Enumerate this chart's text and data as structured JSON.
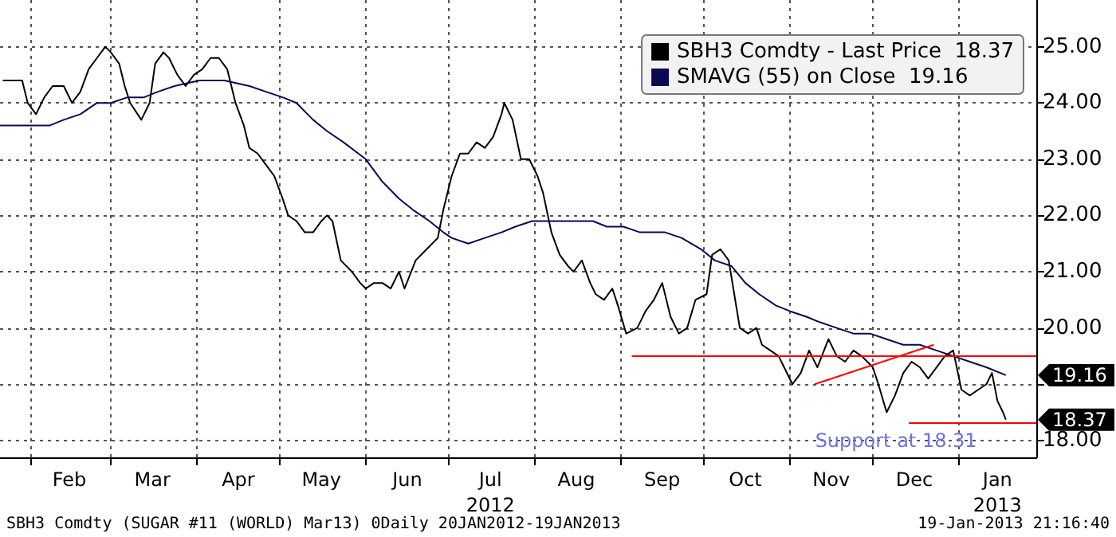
{
  "chart_data": {
    "type": "line",
    "xlim": [
      "2012-01-21",
      "2013-01-29"
    ],
    "xticks": [
      {
        "value": "2012-02-01",
        "label": null
      },
      {
        "value": "2012-03-01",
        "label": null
      },
      {
        "value": "2012-04-01",
        "label": null
      },
      {
        "value": "2012-05-01",
        "label": null
      },
      {
        "value": "2012-06-01",
        "label": null
      },
      {
        "value": "2012-07-01",
        "label": null
      },
      {
        "value": "2012-08-01",
        "label": null
      },
      {
        "value": "2012-09-01",
        "label": null
      },
      {
        "value": "2012-10-01",
        "label": null
      },
      {
        "value": "2012-11-01",
        "label": null
      },
      {
        "value": "2012-12-01",
        "label": null
      },
      {
        "value": "2013-01-01",
        "label": null
      },
      {
        "value": "2012-02-15",
        "label": "Feb"
      },
      {
        "value": "2012-03-16",
        "label": "Mar"
      },
      {
        "value": "2012-04-16",
        "label": "Apr"
      },
      {
        "value": "2012-05-16",
        "label": "May"
      },
      {
        "value": "2012-06-16",
        "label": "Jun"
      },
      {
        "value": "2012-07-16",
        "label": "Jul\n2012"
      },
      {
        "value": "2012-08-16",
        "label": "Aug"
      },
      {
        "value": "2012-09-16",
        "label": "Sep"
      },
      {
        "value": "2012-10-16",
        "label": "Oct"
      },
      {
        "value": "2012-11-16",
        "label": "Nov"
      },
      {
        "value": "2012-12-16",
        "label": "Dec"
      },
      {
        "value": "2013-01-15",
        "label": "Jan\n2013"
      }
    ],
    "ylim": [
      17.7,
      25.83
    ],
    "yticks": [
      {
        "value": 18,
        "label": "18.00"
      },
      {
        "value": 19,
        "label": null
      },
      {
        "value": 20,
        "label": "20.00"
      },
      {
        "value": 21,
        "label": "21.00"
      },
      {
        "value": 22,
        "label": "22.00"
      },
      {
        "value": 23,
        "label": "23.00"
      },
      {
        "value": 24,
        "label": "24.00"
      },
      {
        "value": 25,
        "label": "25.00"
      }
    ],
    "grid": true,
    "legend": "top right",
    "series": [
      {
        "name": "SBH3 Comdty - Last Price  18.37",
        "color": "#000000",
        "x": [
          "2012-01-22",
          "2012-01-26",
          "2012-01-29",
          "2012-01-31",
          "2012-02-03",
          "2012-02-06",
          "2012-02-09",
          "2012-02-13",
          "2012-02-16",
          "2012-02-19",
          "2012-02-22",
          "2012-02-25",
          "2012-02-28",
          "2012-03-01",
          "2012-03-04",
          "2012-03-06",
          "2012-03-08",
          "2012-03-12",
          "2012-03-15",
          "2012-03-17",
          "2012-03-20",
          "2012-03-22",
          "2012-03-25",
          "2012-03-28",
          "2012-03-31",
          "2012-04-03",
          "2012-04-06",
          "2012-04-09",
          "2012-04-12",
          "2012-04-15",
          "2012-04-18",
          "2012-04-20",
          "2012-04-23",
          "2012-04-26",
          "2012-04-29",
          "2012-05-02",
          "2012-05-04",
          "2012-05-07",
          "2012-05-10",
          "2012-05-13",
          "2012-05-16",
          "2012-05-18",
          "2012-05-20",
          "2012-05-23",
          "2012-05-27",
          "2012-05-30",
          "2012-06-01",
          "2012-06-04",
          "2012-06-07",
          "2012-06-10",
          "2012-06-13",
          "2012-06-15",
          "2012-06-19",
          "2012-06-23",
          "2012-06-27",
          "2012-06-29",
          "2012-07-02",
          "2012-07-05",
          "2012-07-08",
          "2012-07-11",
          "2012-07-14",
          "2012-07-17",
          "2012-07-20",
          "2012-07-21",
          "2012-07-24",
          "2012-07-27",
          "2012-07-30",
          "2012-08-02",
          "2012-08-04",
          "2012-08-07",
          "2012-08-10",
          "2012-08-13",
          "2012-08-15",
          "2012-08-18",
          "2012-08-21",
          "2012-08-23",
          "2012-08-26",
          "2012-08-29",
          "2012-08-31",
          "2012-09-03",
          "2012-09-07",
          "2012-09-10",
          "2012-09-13",
          "2012-09-16",
          "2012-09-19",
          "2012-09-22",
          "2012-09-25",
          "2012-09-28",
          "2012-10-02",
          "2012-10-04",
          "2012-10-07",
          "2012-10-10",
          "2012-10-12",
          "2012-10-14",
          "2012-10-17",
          "2012-10-20",
          "2012-10-22",
          "2012-10-25",
          "2012-10-28",
          "2012-10-30",
          "2012-11-02",
          "2012-11-05",
          "2012-11-08",
          "2012-11-11",
          "2012-11-15",
          "2012-11-18",
          "2012-11-21",
          "2012-11-24",
          "2012-11-27",
          "2012-12-01",
          "2012-12-03",
          "2012-12-06",
          "2012-12-09",
          "2012-12-12",
          "2012-12-15",
          "2012-12-18",
          "2012-12-21",
          "2012-12-24",
          "2012-12-27",
          "2012-12-30",
          "2013-01-02",
          "2013-01-05",
          "2013-01-08",
          "2013-01-11",
          "2013-01-13",
          "2013-01-15",
          "2013-01-17",
          "2013-01-18"
        ],
        "values": [
          24.4,
          24.4,
          24.4,
          24.0,
          23.8,
          24.1,
          24.3,
          24.3,
          24.0,
          24.2,
          24.6,
          24.8,
          25.0,
          24.9,
          24.7,
          24.3,
          24.0,
          23.7,
          24.0,
          24.7,
          24.9,
          24.8,
          24.5,
          24.3,
          24.5,
          24.6,
          24.8,
          24.8,
          24.6,
          24.0,
          23.6,
          23.2,
          23.1,
          22.9,
          22.7,
          22.3,
          22.0,
          21.9,
          21.7,
          21.7,
          21.9,
          22.0,
          21.9,
          21.2,
          21.0,
          20.8,
          20.7,
          20.8,
          20.8,
          20.7,
          21.0,
          20.7,
          21.2,
          21.4,
          21.6,
          22.1,
          22.7,
          23.1,
          23.1,
          23.3,
          23.2,
          23.4,
          23.8,
          24.0,
          23.7,
          23.0,
          23.0,
          22.7,
          22.4,
          21.7,
          21.3,
          21.1,
          21.0,
          21.2,
          20.8,
          20.6,
          20.5,
          20.7,
          20.4,
          19.9,
          20.0,
          20.3,
          20.5,
          20.8,
          20.2,
          19.9,
          20.0,
          20.5,
          20.6,
          21.3,
          21.4,
          21.2,
          20.6,
          20.0,
          19.9,
          20.0,
          19.7,
          19.6,
          19.5,
          19.3,
          19.0,
          19.2,
          19.6,
          19.3,
          19.8,
          19.5,
          19.4,
          19.6,
          19.5,
          19.3,
          19.0,
          18.5,
          18.8,
          19.2,
          19.4,
          19.3,
          19.1,
          19.3,
          19.5,
          19.6,
          18.9,
          18.8,
          18.9,
          19.0,
          19.2,
          18.7,
          18.5,
          18.37
        ]
      },
      {
        "name": "SMAVG (55) on Close  19.16",
        "color": "#0a0a50",
        "x": [
          "2012-01-21",
          "2012-02-02",
          "2012-02-08",
          "2012-02-13",
          "2012-02-19",
          "2012-02-25",
          "2012-03-01",
          "2012-03-07",
          "2012-03-13",
          "2012-03-18",
          "2012-03-24",
          "2012-04-02",
          "2012-04-11",
          "2012-04-20",
          "2012-04-26",
          "2012-05-02",
          "2012-05-07",
          "2012-05-13",
          "2012-05-18",
          "2012-05-24",
          "2012-06-01",
          "2012-06-07",
          "2012-06-13",
          "2012-06-18",
          "2012-06-24",
          "2012-06-29",
          "2012-07-02",
          "2012-07-08",
          "2012-07-14",
          "2012-07-20",
          "2012-07-25",
          "2012-07-31",
          "2012-08-06",
          "2012-08-11",
          "2012-08-17",
          "2012-08-22",
          "2012-08-27",
          "2012-09-02",
          "2012-09-08",
          "2012-09-17",
          "2012-09-23",
          "2012-09-30",
          "2012-10-05",
          "2012-10-11",
          "2012-10-16",
          "2012-10-21",
          "2012-10-27",
          "2012-11-01",
          "2012-11-07",
          "2012-11-12",
          "2012-11-18",
          "2012-11-24",
          "2012-11-30",
          "2012-12-06",
          "2012-12-12",
          "2012-12-18",
          "2012-12-24",
          "2012-12-30",
          "2013-01-05",
          "2013-01-11",
          "2013-01-18"
        ],
        "values": [
          23.6,
          23.6,
          23.6,
          23.7,
          23.8,
          24.0,
          24.0,
          24.1,
          24.1,
          24.2,
          24.3,
          24.4,
          24.4,
          24.3,
          24.2,
          24.1,
          24.0,
          23.7,
          23.5,
          23.3,
          23.0,
          22.6,
          22.3,
          22.1,
          21.9,
          21.7,
          21.6,
          21.5,
          21.6,
          21.7,
          21.8,
          21.9,
          21.9,
          21.9,
          21.9,
          21.9,
          21.8,
          21.8,
          21.7,
          21.7,
          21.6,
          21.4,
          21.2,
          21.1,
          20.8,
          20.6,
          20.4,
          20.3,
          20.2,
          20.1,
          20.0,
          19.9,
          19.9,
          19.8,
          19.7,
          19.7,
          19.6,
          19.5,
          19.4,
          19.3,
          19.16
        ]
      },
      {
        "color": "#ff0000",
        "x": [
          "2012-09-05",
          "2013-01-29"
        ],
        "values": [
          19.5,
          19.5
        ]
      },
      {
        "color": "#ff0000",
        "x": [
          "2012-11-10",
          "2012-12-23"
        ],
        "values": [
          19.0,
          19.7
        ]
      },
      {
        "color": "#ff0000",
        "x": [
          "2012-12-14",
          "2013-01-29"
        ],
        "values": [
          18.31,
          18.31
        ]
      }
    ],
    "annotations": [
      "Support at 18.31",
      "18.37",
      "19.16",
      "SBH3 Comdty (SUGAR #11 (WORLD) Mar13) 0Daily 20JAN2012-19JAN2013",
      "19-Jan-2013 21:16:40"
    ]
  }
}
